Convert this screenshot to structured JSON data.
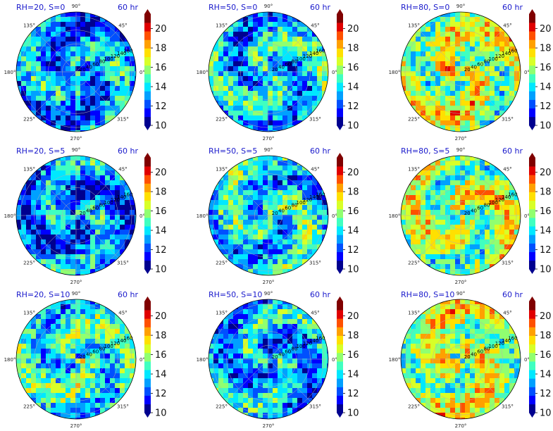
{
  "chart_data": [
    {
      "type": "heatmap",
      "title": "RH=20, S=0",
      "time": "60 hr",
      "mean_level": 12.9,
      "cbar_ticks": [
        "10",
        "12",
        "14",
        "16",
        "18",
        "20"
      ],
      "angle_labels": [
        "0°",
        "45°",
        "90°",
        "135°",
        "180°",
        "225°",
        "270°",
        "315°"
      ],
      "radial_labels": [
        "20",
        "40",
        "60",
        "80",
        "100",
        "120",
        "140",
        "160"
      ]
    },
    {
      "type": "heatmap",
      "title": "RH=50, S=0",
      "time": "60 hr",
      "mean_level": 13.6,
      "cbar_ticks": [
        "10",
        "12",
        "14",
        "16",
        "18",
        "20"
      ],
      "angle_labels": [
        "0°",
        "45°",
        "90°",
        "135°",
        "180°",
        "225°",
        "270°",
        "315°"
      ],
      "radial_labels": [
        "20",
        "40",
        "60",
        "80",
        "100",
        "120",
        "140",
        "160"
      ]
    },
    {
      "type": "heatmap",
      "title": "RH=80, S=0",
      "time": "60 hr",
      "mean_level": 16.2,
      "cbar_ticks": [
        "10",
        "12",
        "14",
        "16",
        "18",
        "20"
      ],
      "angle_labels": [
        "0°",
        "45°",
        "90°",
        "135°",
        "180°",
        "225°",
        "270°",
        "315°"
      ],
      "radial_labels": [
        "20",
        "40",
        "60",
        "80",
        "100",
        "120",
        "140",
        "160"
      ]
    },
    {
      "type": "heatmap",
      "title": "RH=20, S=5",
      "time": "60 hr",
      "mean_level": 12.8,
      "cbar_ticks": [
        "10",
        "12",
        "14",
        "16",
        "18",
        "20"
      ],
      "angle_labels": [
        "0°",
        "45°",
        "90°",
        "135°",
        "180°",
        "225°",
        "270°",
        "315°"
      ],
      "radial_labels": [
        "20",
        "40",
        "60",
        "80",
        "100",
        "120",
        "140",
        "160"
      ]
    },
    {
      "type": "heatmap",
      "title": "RH=50, S=5",
      "time": "60 hr",
      "mean_level": 14.0,
      "cbar_ticks": [
        "10",
        "12",
        "14",
        "16",
        "18",
        "20"
      ],
      "angle_labels": [
        "0°",
        "45°",
        "90°",
        "135°",
        "180°",
        "225°",
        "270°",
        "315°"
      ],
      "radial_labels": [
        "20",
        "40",
        "60",
        "80",
        "100",
        "120",
        "140",
        "160"
      ]
    },
    {
      "type": "heatmap",
      "title": "RH=80, S=5",
      "time": "60 hr",
      "mean_level": 16.0,
      "cbar_ticks": [
        "10",
        "12",
        "14",
        "16",
        "18",
        "20"
      ],
      "angle_labels": [
        "0°",
        "45°",
        "90°",
        "135°",
        "180°",
        "225°",
        "270°",
        "315°"
      ],
      "radial_labels": [
        "20",
        "40",
        "60",
        "80",
        "100",
        "120",
        "140",
        "160"
      ]
    },
    {
      "type": "heatmap",
      "title": "RH=20, S=10",
      "time": "60 hr",
      "mean_level": 14.4,
      "cbar_ticks": [
        "10",
        "12",
        "14",
        "16",
        "18",
        "20"
      ],
      "angle_labels": [
        "0°",
        "45°",
        "90°",
        "135°",
        "180°",
        "225°",
        "270°",
        "315°"
      ],
      "radial_labels": [
        "20",
        "40",
        "60",
        "80",
        "100",
        "120",
        "140",
        "160"
      ]
    },
    {
      "type": "heatmap",
      "title": "RH=50, S=10",
      "time": "60 hr",
      "mean_level": 13.2,
      "cbar_ticks": [
        "10",
        "12",
        "14",
        "16",
        "18",
        "20"
      ],
      "angle_labels": [
        "0°",
        "45°",
        "90°",
        "135°",
        "180°",
        "225°",
        "270°",
        "315°"
      ],
      "radial_labels": [
        "20",
        "40",
        "60",
        "80",
        "100",
        "120",
        "140",
        "160"
      ]
    },
    {
      "type": "heatmap",
      "title": "RH=80, S=10",
      "time": "60 hr",
      "mean_level": 16.3,
      "cbar_ticks": [
        "10",
        "12",
        "14",
        "16",
        "18",
        "20"
      ],
      "angle_labels": [
        "0°",
        "45°",
        "90°",
        "135°",
        "180°",
        "225°",
        "270°",
        "315°"
      ],
      "radial_labels": [
        "20",
        "40",
        "60",
        "80",
        "100",
        "120",
        "140",
        "160"
      ]
    }
  ],
  "colormap": [
    "#00008f",
    "#0000ff",
    "#0050ff",
    "#00a0ff",
    "#00e8ff",
    "#40ffc0",
    "#90ff70",
    "#d8ff28",
    "#ffe000",
    "#ffa000",
    "#ff5000",
    "#e00000",
    "#800000"
  ],
  "cbar_range": [
    10,
    21.5
  ]
}
